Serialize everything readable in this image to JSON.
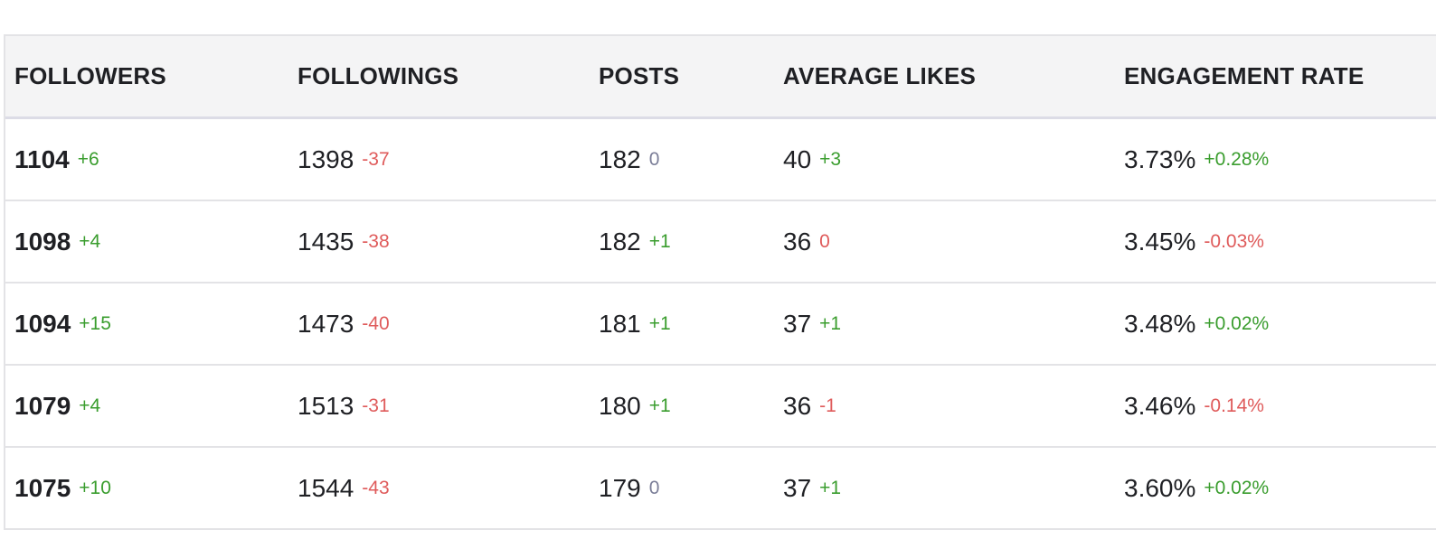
{
  "table": {
    "columns": [
      "FOLLOWERS",
      "FOLLOWINGS",
      "POSTS",
      "AVERAGE LIKES",
      "ENGAGEMENT RATE"
    ],
    "rows": [
      [
        {
          "value": "1104",
          "change": "+6",
          "color": "#3a9d2e"
        },
        {
          "value": "1398",
          "change": "-37",
          "color": "#df5b5b"
        },
        {
          "value": "182",
          "change": "0",
          "color": "#7b7e98"
        },
        {
          "value": "40",
          "change": "+3",
          "color": "#3a9d2e"
        },
        {
          "value": "3.73%",
          "change": "+0.28%",
          "color": "#3a9d2e"
        }
      ],
      [
        {
          "value": "1098",
          "change": "+4",
          "color": "#3a9d2e"
        },
        {
          "value": "1435",
          "change": "-38",
          "color": "#df5b5b"
        },
        {
          "value": "182",
          "change": "+1",
          "color": "#3a9d2e"
        },
        {
          "value": "36",
          "change": "0",
          "color": "#df5b5b"
        },
        {
          "value": "3.45%",
          "change": "-0.03%",
          "color": "#df5b5b"
        }
      ],
      [
        {
          "value": "1094",
          "change": "+15",
          "color": "#3a9d2e"
        },
        {
          "value": "1473",
          "change": "-40",
          "color": "#df5b5b"
        },
        {
          "value": "181",
          "change": "+1",
          "color": "#3a9d2e"
        },
        {
          "value": "37",
          "change": "+1",
          "color": "#3a9d2e"
        },
        {
          "value": "3.48%",
          "change": "+0.02%",
          "color": "#3a9d2e"
        }
      ],
      [
        {
          "value": "1079",
          "change": "+4",
          "color": "#3a9d2e"
        },
        {
          "value": "1513",
          "change": "-31",
          "color": "#df5b5b"
        },
        {
          "value": "180",
          "change": "+1",
          "color": "#3a9d2e"
        },
        {
          "value": "36",
          "change": "-1",
          "color": "#df5b5b"
        },
        {
          "value": "3.46%",
          "change": "-0.14%",
          "color": "#df5b5b"
        }
      ],
      [
        {
          "value": "1075",
          "change": "+10",
          "color": "#3a9d2e"
        },
        {
          "value": "1544",
          "change": "-43",
          "color": "#df5b5b"
        },
        {
          "value": "179",
          "change": "0",
          "color": "#7b7e98"
        },
        {
          "value": "37",
          "change": "+1",
          "color": "#3a9d2e"
        },
        {
          "value": "3.60%",
          "change": "+0.02%",
          "color": "#3a9d2e"
        }
      ]
    ]
  }
}
